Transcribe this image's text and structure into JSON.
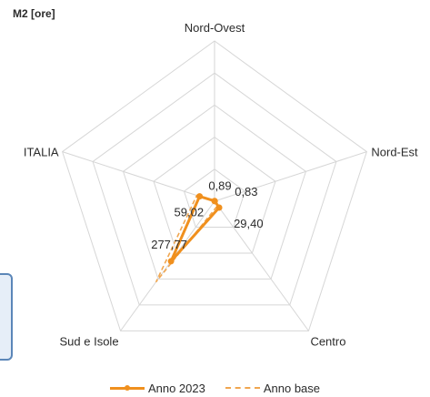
{
  "unit_label": "M2 [ore]",
  "chart_data": {
    "type": "radar",
    "axes": [
      "Nord-Ovest",
      "Nord-Est",
      "Centro",
      "Sud e Isole",
      "ITALIA"
    ],
    "series": [
      {
        "name": "Anno 2023",
        "values": [
          0.89,
          0.83,
          29.4,
          277.77,
          59.02
        ],
        "style": "solid",
        "color": "#f0901e"
      },
      {
        "name": "Anno base",
        "values": [
          1.2,
          3.0,
          20.0,
          372.0,
          70.0
        ],
        "style": "dashed",
        "color": "#f0a650"
      }
    ],
    "data_labels": [
      "0,89",
      "0,83",
      "29,40",
      "277,77",
      "59,02"
    ],
    "scale_max": 600,
    "rings": 5
  },
  "legend": {
    "series_1": "Anno 2023",
    "series_2": "Anno base"
  }
}
